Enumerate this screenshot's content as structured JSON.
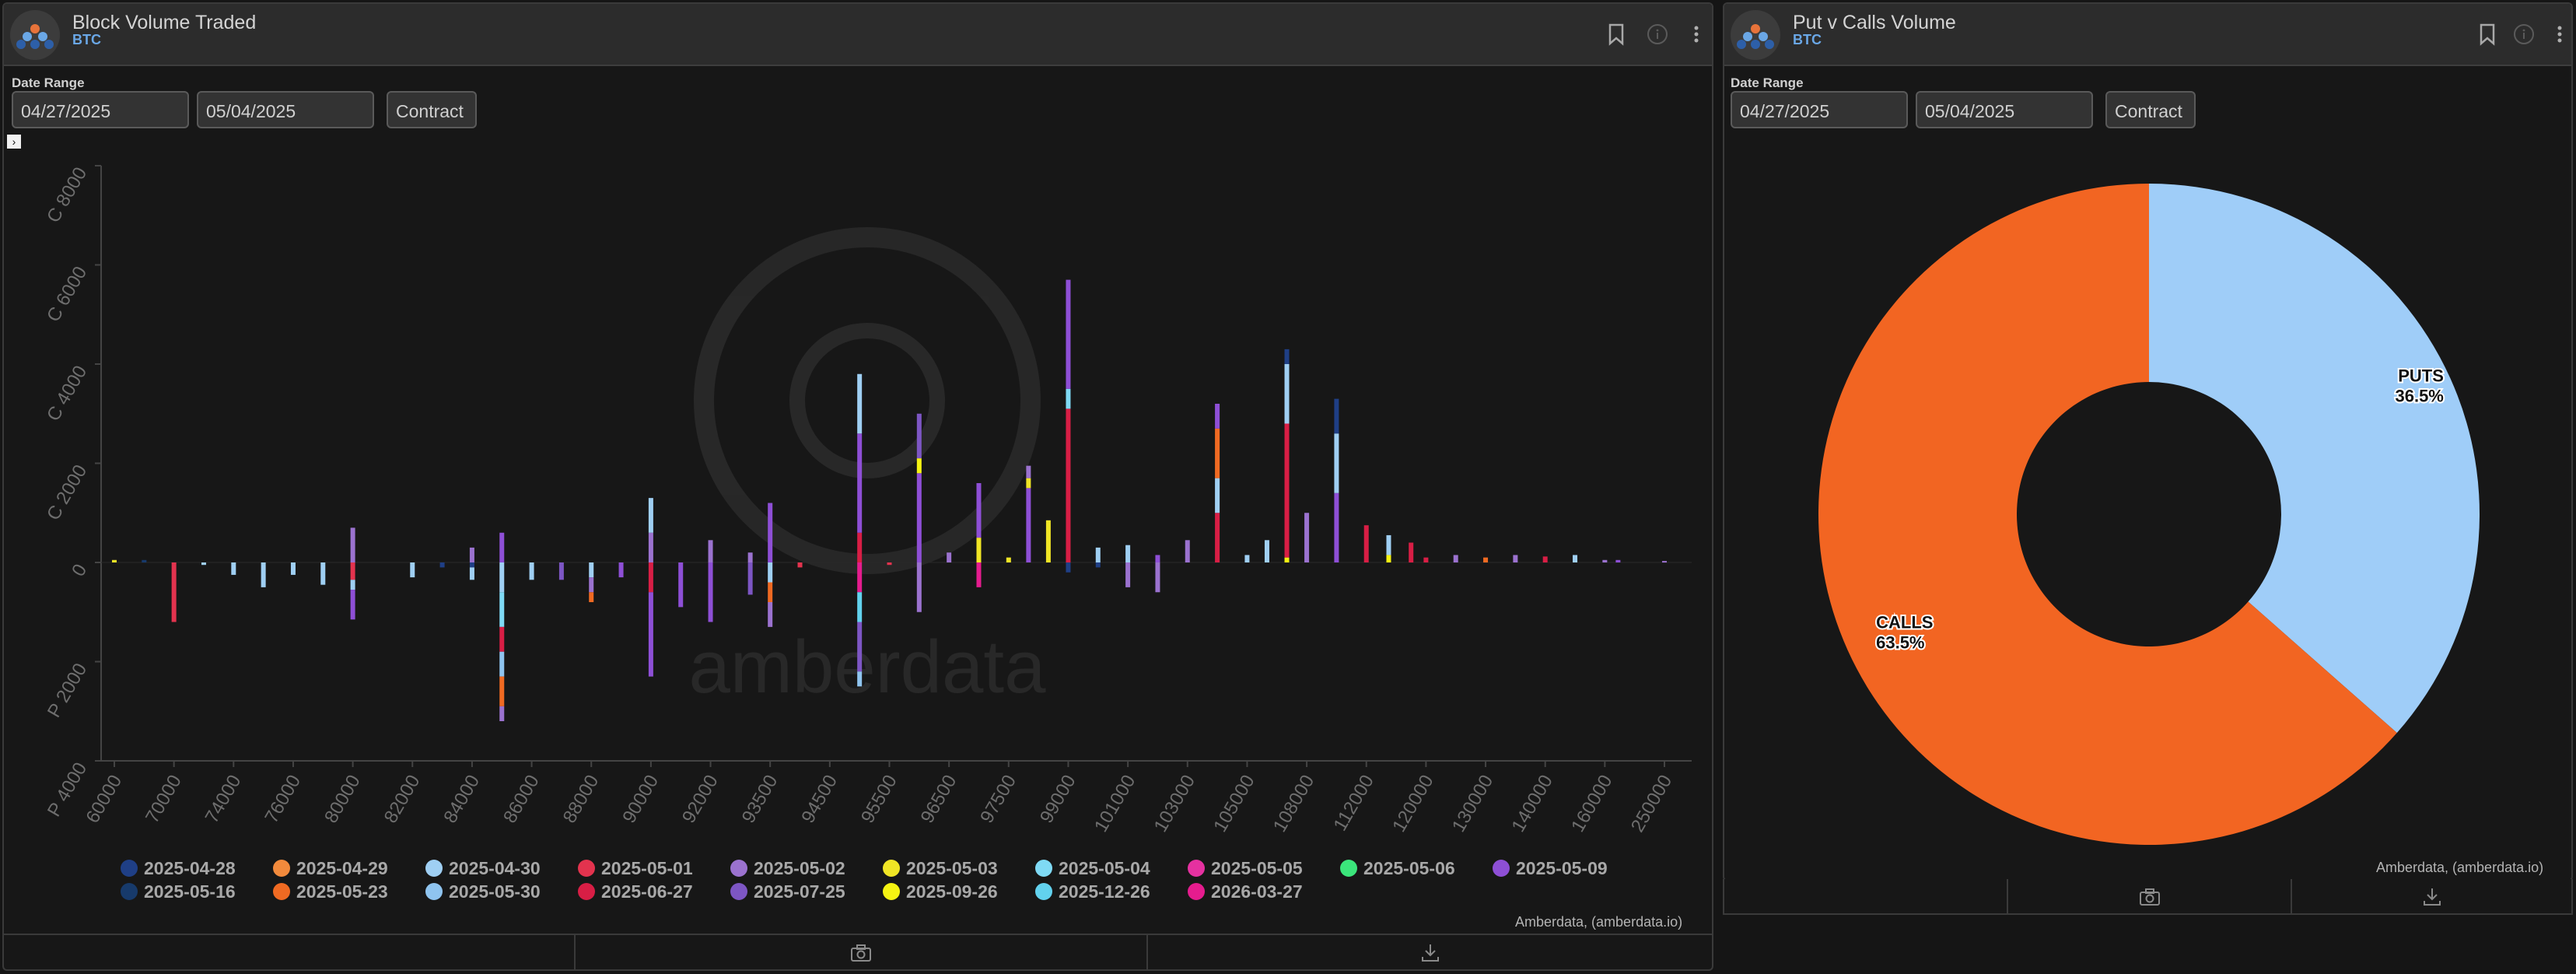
{
  "left_panel": {
    "title": "Block Volume Traded",
    "subtitle": "BTC",
    "date_range_label": "Date Range",
    "start_date": "04/27/2025",
    "end_date": "05/04/2025",
    "contract_button": "Contract",
    "credit": "Amberdata, (amberdata.io)",
    "watermark": "amberdata"
  },
  "right_panel": {
    "title": "Put v Calls Volume",
    "subtitle": "BTC",
    "date_range_label": "Date Range",
    "start_date": "04/27/2025",
    "end_date": "05/04/2025",
    "contract_button": "Contract",
    "credit": "Amberdata, (amberdata.io)"
  },
  "icons": {
    "bookmark": "bookmark-icon",
    "info": "info-icon",
    "menu": "kebab-menu-icon",
    "camera": "camera-icon",
    "download": "download-icon"
  },
  "chart_data": [
    {
      "type": "bar",
      "stacked": true,
      "ylim": [
        -4000,
        8000
      ],
      "y_ticks": [
        {
          "value": 8000,
          "label": "C 8000"
        },
        {
          "value": 6000,
          "label": "C 6000"
        },
        {
          "value": 4000,
          "label": "C 4000"
        },
        {
          "value": 2000,
          "label": "C 2000"
        },
        {
          "value": 0,
          "label": "0"
        },
        {
          "value": -2000,
          "label": "P 2000"
        },
        {
          "value": -4000,
          "label": "P 4000"
        }
      ],
      "categories": [
        "60000",
        "70000",
        "74000",
        "76000",
        "80000",
        "82000",
        "84000",
        "86000",
        "88000",
        "90000",
        "92000",
        "93500",
        "94500",
        "95500",
        "96500",
        "97500",
        "99000",
        "101000",
        "103000",
        "105000",
        "108000",
        "112000",
        "120000",
        "130000",
        "140000",
        "160000",
        "250000"
      ],
      "series": [
        {
          "name": "2025-04-28",
          "color": "#1f3f86"
        },
        {
          "name": "2025-04-29",
          "color": "#f28a3c"
        },
        {
          "name": "2025-04-30",
          "color": "#9fcff3"
        },
        {
          "name": "2025-05-01",
          "color": "#e3334e"
        },
        {
          "name": "2025-05-02",
          "color": "#9b72cf"
        },
        {
          "name": "2025-05-03",
          "color": "#f0e525"
        },
        {
          "name": "2025-05-04",
          "color": "#7fdaf5"
        },
        {
          "name": "2025-05-05",
          "color": "#e531a0"
        },
        {
          "name": "2025-05-06",
          "color": "#3be57b"
        },
        {
          "name": "2025-05-09",
          "color": "#8e4fd6"
        },
        {
          "name": "2025-05-16",
          "color": "#173a6b"
        },
        {
          "name": "2025-05-23",
          "color": "#f06a22"
        },
        {
          "name": "2025-05-30",
          "color": "#8fc4ef"
        },
        {
          "name": "2025-06-27",
          "color": "#d81e45"
        },
        {
          "name": "2025-07-25",
          "color": "#7d56c4"
        },
        {
          "name": "2025-09-26",
          "color": "#f5f312"
        },
        {
          "name": "2025-12-26",
          "color": "#62d2ee"
        },
        {
          "name": "2026-03-27",
          "color": "#e51c8e"
        }
      ],
      "bars": [
        {
          "x": 60000,
          "segs": [
            [
              5,
              50
            ]
          ]
        },
        {
          "x": 65000,
          "segs": [
            [
              10,
              50
            ]
          ]
        },
        {
          "x": 70000,
          "segs": [
            [
              3,
              -1200
            ]
          ]
        },
        {
          "x": 72000,
          "segs": [
            [
              2,
              -50
            ]
          ]
        },
        {
          "x": 74000,
          "segs": [
            [
              2,
              -250
            ]
          ]
        },
        {
          "x": 75000,
          "segs": [
            [
              2,
              -500
            ]
          ]
        },
        {
          "x": 76000,
          "segs": [
            [
              2,
              -250
            ]
          ]
        },
        {
          "x": 78000,
          "segs": [
            [
              2,
              -450
            ]
          ]
        },
        {
          "x": 80000,
          "segs": [
            [
              4,
              700
            ],
            [
              3,
              -350
            ],
            [
              2,
              -550
            ],
            [
              9,
              -1150
            ]
          ]
        },
        {
          "x": 82000,
          "segs": [
            [
              2,
              -300
            ]
          ]
        },
        {
          "x": 83000,
          "segs": [
            [
              0,
              -100
            ]
          ]
        },
        {
          "x": 84000,
          "segs": [
            [
              4,
              300
            ],
            [
              0,
              -100
            ],
            [
              2,
              -350
            ]
          ]
        },
        {
          "x": 85000,
          "segs": [
            [
              9,
              600
            ],
            [
              2,
              -600
            ],
            [
              6,
              -1300
            ],
            [
              13,
              -1800
            ],
            [
              12,
              -2300
            ],
            [
              11,
              -2900
            ],
            [
              4,
              -3200
            ]
          ]
        },
        {
          "x": 86000,
          "segs": [
            [
              2,
              -350
            ]
          ]
        },
        {
          "x": 87000,
          "segs": [
            [
              14,
              -350
            ]
          ]
        },
        {
          "x": 88000,
          "segs": [
            [
              2,
              -300
            ],
            [
              4,
              -600
            ],
            [
              11,
              -800
            ]
          ]
        },
        {
          "x": 89000,
          "segs": [
            [
              9,
              -300
            ]
          ]
        },
        {
          "x": 90000,
          "segs": [
            [
              4,
              600
            ],
            [
              2,
              1300
            ],
            [
              13,
              -600
            ],
            [
              9,
              -2300
            ]
          ]
        },
        {
          "x": 91000,
          "segs": [
            [
              9,
              -900
            ]
          ]
        },
        {
          "x": 92000,
          "segs": [
            [
              4,
              450
            ],
            [
              9,
              -1200
            ]
          ]
        },
        {
          "x": 93000,
          "segs": [
            [
              4,
              200
            ],
            [
              14,
              -650
            ]
          ]
        },
        {
          "x": 93500,
          "segs": [
            [
              9,
              1200
            ],
            [
              2,
              -400
            ],
            [
              11,
              -800
            ],
            [
              4,
              -1300
            ]
          ]
        },
        {
          "x": 94000,
          "segs": [
            [
              3,
              -100
            ]
          ]
        },
        {
          "x": 95000,
          "segs": [
            [
              13,
              600
            ],
            [
              9,
              2600
            ],
            [
              2,
              3800
            ],
            [
              17,
              -600
            ],
            [
              16,
              -1200
            ],
            [
              14,
              -2200
            ],
            [
              12,
              -2500
            ]
          ]
        },
        {
          "x": 95500,
          "segs": [
            [
              3,
              -50
            ]
          ]
        },
        {
          "x": 96000,
          "segs": [
            [
              9,
              1800
            ],
            [
              15,
              2100
            ],
            [
              14,
              3000
            ],
            [
              4,
              -1000
            ]
          ]
        },
        {
          "x": 96500,
          "segs": [
            [
              4,
              200
            ]
          ]
        },
        {
          "x": 97000,
          "segs": [
            [
              5,
              500
            ],
            [
              9,
              1600
            ],
            [
              17,
              -500
            ]
          ]
        },
        {
          "x": 97500,
          "segs": [
            [
              5,
              100
            ]
          ]
        },
        {
          "x": 98000,
          "segs": [
            [
              9,
              1500
            ],
            [
              5,
              1700
            ],
            [
              4,
              1950
            ]
          ]
        },
        {
          "x": 98500,
          "segs": [
            [
              5,
              850
            ]
          ]
        },
        {
          "x": 99000,
          "segs": [
            [
              13,
              3100
            ],
            [
              6,
              3500
            ],
            [
              9,
              5700
            ],
            [
              0,
              -200
            ]
          ]
        },
        {
          "x": 100000,
          "segs": [
            [
              2,
              300
            ],
            [
              0,
              -100
            ]
          ]
        },
        {
          "x": 101000,
          "segs": [
            [
              2,
              350
            ],
            [
              4,
              -500
            ]
          ]
        },
        {
          "x": 102000,
          "segs": [
            [
              9,
              150
            ],
            [
              4,
              -600
            ]
          ]
        },
        {
          "x": 103000,
          "segs": [
            [
              4,
              450
            ]
          ]
        },
        {
          "x": 104000,
          "segs": [
            [
              13,
              1000
            ],
            [
              2,
              1700
            ],
            [
              11,
              2700
            ],
            [
              9,
              3200
            ]
          ]
        },
        {
          "x": 105000,
          "segs": [
            [
              2,
              150
            ]
          ]
        },
        {
          "x": 106000,
          "segs": [
            [
              2,
              450
            ]
          ]
        },
        {
          "x": 107000,
          "segs": [
            [
              15,
              100
            ],
            [
              13,
              2800
            ],
            [
              2,
              4000
            ],
            [
              0,
              4300
            ]
          ]
        },
        {
          "x": 108000,
          "segs": [
            [
              4,
              1000
            ]
          ]
        },
        {
          "x": 110000,
          "segs": [
            [
              9,
              1400
            ],
            [
              2,
              2600
            ],
            [
              0,
              3300
            ]
          ]
        },
        {
          "x": 112000,
          "segs": [
            [
              13,
              750
            ]
          ]
        },
        {
          "x": 115000,
          "segs": [
            [
              15,
              150
            ],
            [
              2,
              550
            ]
          ]
        },
        {
          "x": 118000,
          "segs": [
            [
              13,
              400
            ]
          ]
        },
        {
          "x": 120000,
          "segs": [
            [
              13,
              100
            ]
          ]
        },
        {
          "x": 125000,
          "segs": [
            [
              4,
              150
            ]
          ]
        },
        {
          "x": 130000,
          "segs": [
            [
              11,
              100
            ]
          ]
        },
        {
          "x": 135000,
          "segs": [
            [
              4,
              150
            ]
          ]
        },
        {
          "x": 140000,
          "segs": [
            [
              13,
              120
            ]
          ]
        },
        {
          "x": 150000,
          "segs": [
            [
              2,
              150
            ]
          ]
        },
        {
          "x": 160000,
          "segs": [
            [
              4,
              50
            ]
          ]
        },
        {
          "x": 180000,
          "segs": [
            [
              9,
              50
            ]
          ]
        },
        {
          "x": 250000,
          "segs": [
            [
              4,
              30
            ]
          ]
        }
      ]
    },
    {
      "type": "pie",
      "donut": true,
      "slices": [
        {
          "label": "PUTS",
          "value": 36.5,
          "value_label": "36.5%",
          "color": "#9fcdf8"
        },
        {
          "label": "CALLS",
          "value": 63.5,
          "value_label": "63.5%",
          "color": "#f26522"
        }
      ]
    }
  ]
}
